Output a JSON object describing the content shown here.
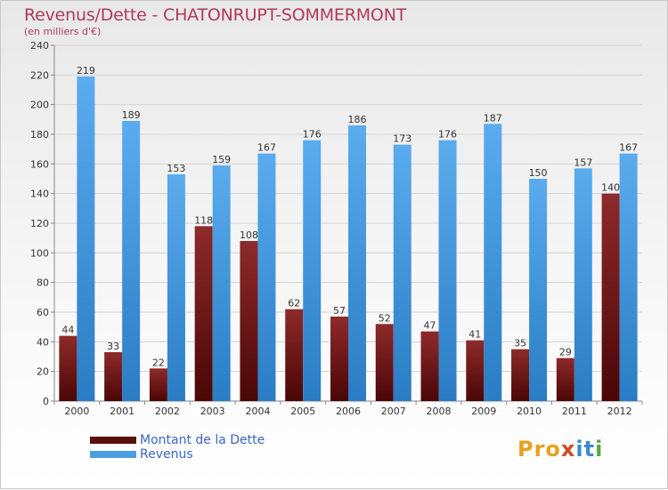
{
  "chart_data": {
    "type": "bar",
    "title": "Revenus/Dette - CHATONRUPT-SOMMERMONT",
    "subtitle": "(en milliers d'€)",
    "categories": [
      "2000",
      "2001",
      "2002",
      "2003",
      "2004",
      "2005",
      "2006",
      "2007",
      "2008",
      "2009",
      "2010",
      "2011",
      "2012"
    ],
    "series": [
      {
        "name": "Montant de la Dette",
        "color": "#7a1a1a",
        "values": [
          44,
          33,
          22,
          118,
          108,
          62,
          57,
          52,
          47,
          41,
          35,
          29,
          140
        ]
      },
      {
        "name": "Revenus",
        "color": "#4a9fe0",
        "values": [
          219,
          189,
          153,
          159,
          167,
          176,
          186,
          173,
          176,
          187,
          150,
          157,
          167
        ]
      }
    ],
    "ylim": [
      0,
      240
    ],
    "yticks": [
      0,
      20,
      40,
      60,
      80,
      100,
      120,
      140,
      160,
      180,
      200,
      220,
      240
    ],
    "grid": true,
    "legend": "bottom-left"
  },
  "logo": {
    "text": "Proxiti",
    "parts": [
      "Pro",
      "x",
      "it",
      "i"
    ]
  }
}
